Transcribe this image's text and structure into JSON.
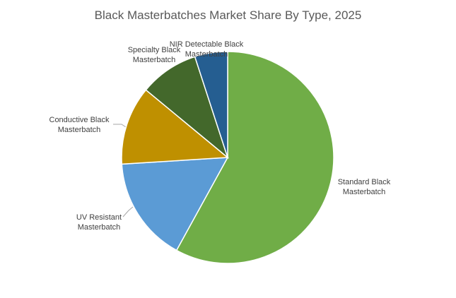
{
  "chart_data": {
    "type": "pie",
    "title": "Black Masterbatches Market Share By Type, 2025",
    "categories": [
      "Standard Black Masterbatch",
      "UV Resistant Masterbatch",
      "Conductive Black Masterbatch",
      "Specialty Black Masterbatch",
      "NIR Detectable Black Masterbatch"
    ],
    "values": [
      58,
      16,
      12,
      9,
      5
    ],
    "colors": [
      "#70ad47",
      "#5b9bd5",
      "#bf9000",
      "#43682b",
      "#255e91"
    ]
  }
}
